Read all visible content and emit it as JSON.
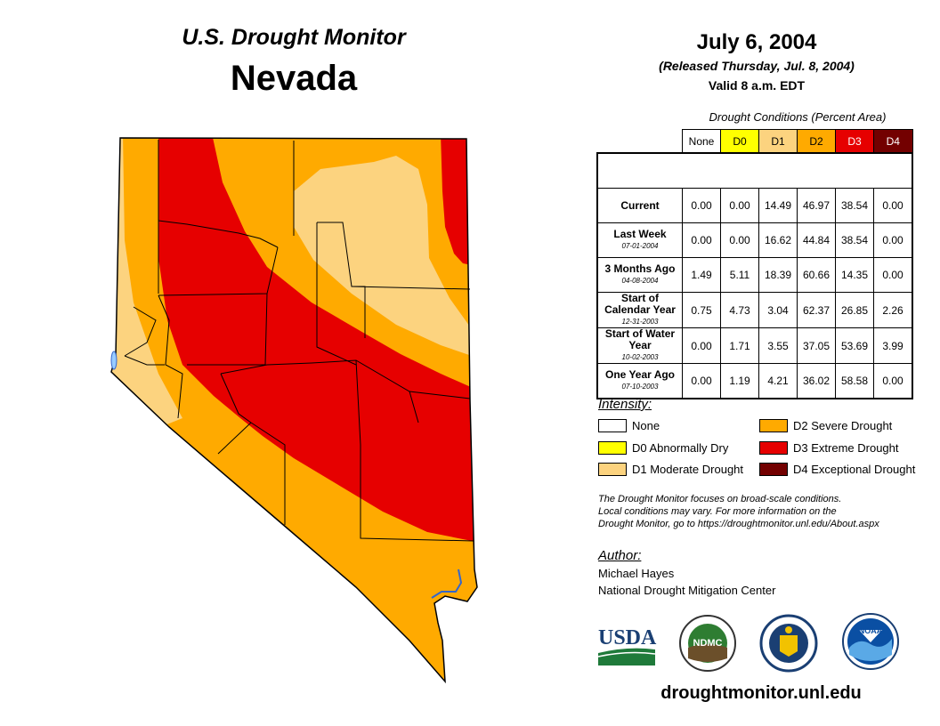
{
  "header": {
    "map_title": "U.S. Drought Monitor",
    "region": "Nevada",
    "date": "July 6, 2004",
    "released": "(Released Thursday, Jul. 8, 2004)",
    "valid": "Valid 8 a.m. EDT"
  },
  "table": {
    "caption": "Drought Conditions (Percent Area)",
    "columns": [
      "None",
      "D0",
      "D1",
      "D2",
      "D3",
      "D4"
    ],
    "column_colors": [
      "#ffffff",
      "#ffff00",
      "#fcd37f",
      "#ffaa00",
      "#e60000",
      "#730000"
    ],
    "rows": [
      {
        "label": "Current",
        "date": "",
        "values": [
          "0.00",
          "0.00",
          "14.49",
          "46.97",
          "38.54",
          "0.00"
        ]
      },
      {
        "label": "Last Week",
        "date": "07-01-2004",
        "values": [
          "0.00",
          "0.00",
          "16.62",
          "44.84",
          "38.54",
          "0.00"
        ]
      },
      {
        "label": "3 Months Ago",
        "date": "04-08-2004",
        "values": [
          "1.49",
          "5.11",
          "18.39",
          "60.66",
          "14.35",
          "0.00"
        ]
      },
      {
        "label": "Start of Calendar Year",
        "date": "12-31-2003",
        "values": [
          "0.75",
          "4.73",
          "3.04",
          "62.37",
          "26.85",
          "2.26"
        ]
      },
      {
        "label": "Start of Water Year",
        "date": "10-02-2003",
        "values": [
          "0.00",
          "1.71",
          "3.55",
          "37.05",
          "53.69",
          "3.99"
        ]
      },
      {
        "label": "One Year Ago",
        "date": "07-10-2003",
        "values": [
          "0.00",
          "1.19",
          "4.21",
          "36.02",
          "58.58",
          "0.00"
        ]
      }
    ]
  },
  "legend": {
    "title": "Intensity:",
    "items": [
      {
        "label": "None",
        "color": "#ffffff"
      },
      {
        "label": "D0 Abnormally Dry",
        "color": "#ffff00"
      },
      {
        "label": "D1 Moderate Drought",
        "color": "#fcd37f"
      },
      {
        "label": "D2 Severe Drought",
        "color": "#ffaa00"
      },
      {
        "label": "D3 Extreme Drought",
        "color": "#e60000"
      },
      {
        "label": "D4 Exceptional Drought",
        "color": "#730000"
      }
    ]
  },
  "note": [
    "The Drought Monitor focuses on broad-scale conditions.",
    "Local conditions may vary. For more information on the",
    "Drought Monitor, go to https://droughtmonitor.unl.edu/About.aspx"
  ],
  "author": {
    "title": "Author:",
    "name": "Michael Hayes",
    "org": "National Drought Mitigation Center"
  },
  "logos": {
    "usda": "USDA",
    "ndmc": "NDMC",
    "noaa": "NOAA"
  },
  "footer": {
    "site": "droughtmonitor.unl.edu"
  }
}
